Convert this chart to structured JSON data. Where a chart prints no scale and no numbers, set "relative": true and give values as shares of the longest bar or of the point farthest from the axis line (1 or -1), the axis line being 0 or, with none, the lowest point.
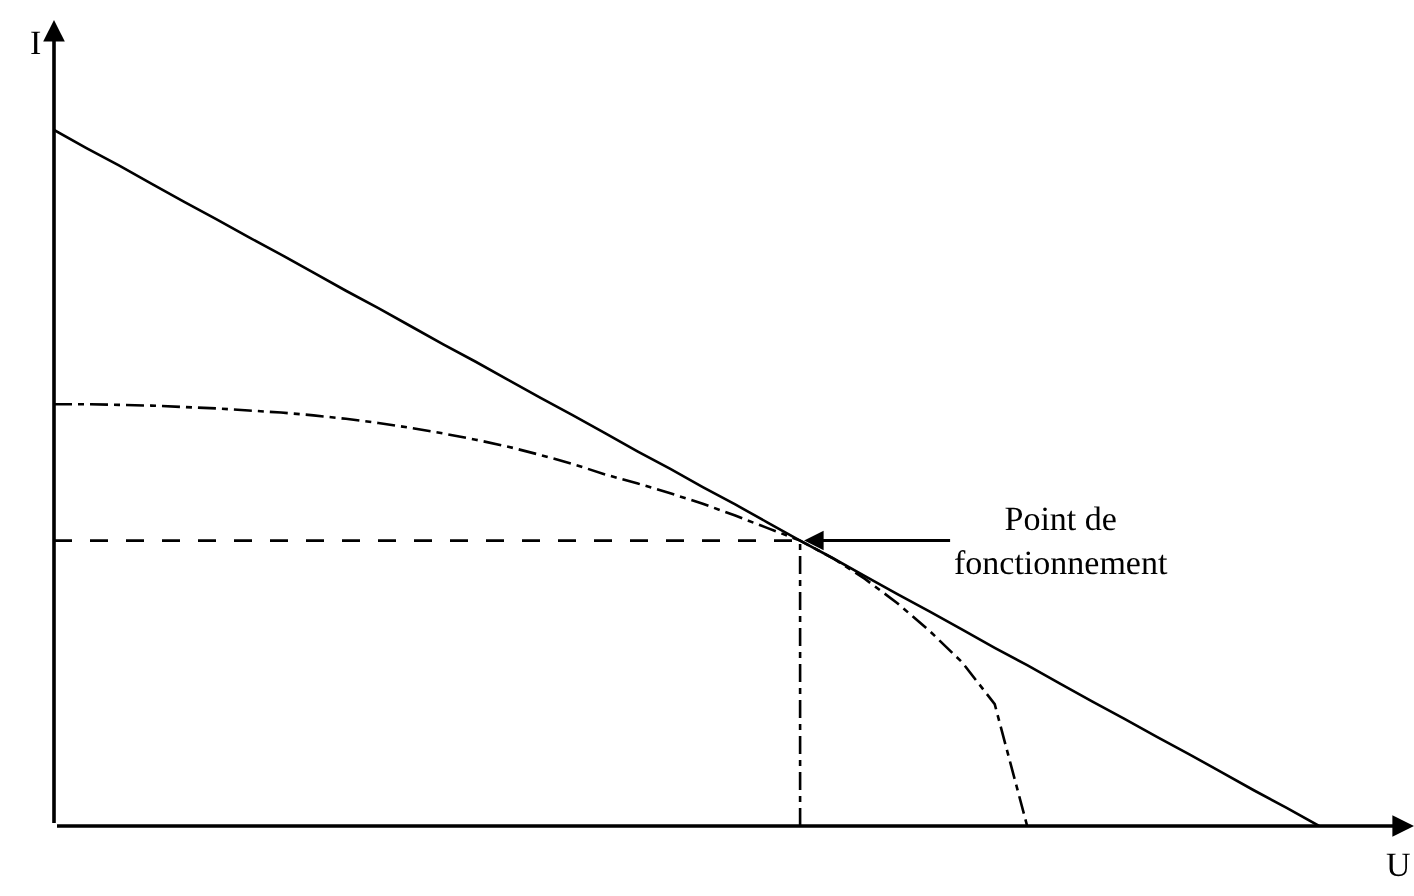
{
  "chart_data": {
    "type": "line",
    "relative": true,
    "xlabel": "U",
    "ylabel": "I",
    "categories": [
      null,
      null,
      null,
      null,
      null,
      null,
      null,
      null,
      null,
      null,
      null,
      null,
      null,
      null,
      null,
      null,
      null,
      null,
      null,
      null,
      null,
      null,
      null,
      null,
      null,
      null,
      null,
      null,
      null,
      null,
      null,
      null,
      null,
      null,
      null,
      null,
      null,
      null,
      null,
      null
    ],
    "series": [
      {
        "color": "#000000",
        "line_style": "solid",
        "values": [
          1,
          0.974,
          0.949,
          0.923,
          0.897,
          0.872,
          0.846,
          0.821,
          0.795,
          0.769,
          0.744,
          0.718,
          0.692,
          0.667,
          0.641,
          0.615,
          0.59,
          0.564,
          0.538,
          0.513,
          0.487,
          0.462,
          0.436,
          0.41,
          0.385,
          0.359,
          0.333,
          0.308,
          0.282,
          0.256,
          0.231,
          0.205,
          0.179,
          0.154,
          0.128,
          0.103,
          0.077,
          0.051,
          0.026,
          0
        ]
      },
      {
        "color": "#000000",
        "line_style": "dashdot",
        "values": [
          0.606,
          0.606,
          0.605,
          0.604,
          0.602,
          0.6,
          0.597,
          0.594,
          0.59,
          0.585,
          0.579,
          0.572,
          0.564,
          0.555,
          0.545,
          0.533,
          0.52,
          0.505,
          0.492,
          0.478,
          0.463,
          0.446,
          0.428,
          0.41,
          0.385,
          0.355,
          0.32,
          0.28,
          0.235,
          0.175,
          0,
          null,
          null,
          null,
          null,
          null,
          null,
          null,
          null,
          null
        ]
      }
    ],
    "ref_lines": [
      {
        "axis": "y",
        "value": 0.41,
        "line_style": "dashed",
        "color": "#000000"
      }
    ],
    "annotations": [
      "Point de\nfonctionnement"
    ]
  }
}
